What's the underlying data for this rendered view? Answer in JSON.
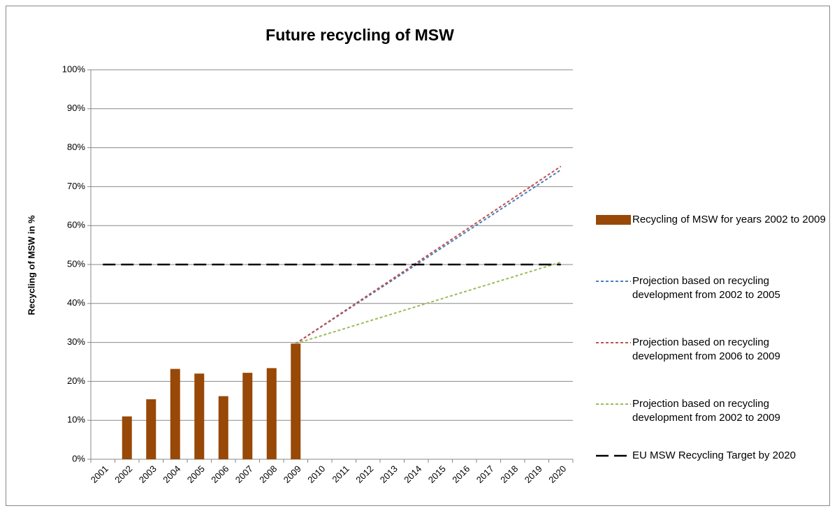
{
  "chart_data": {
    "type": "bar",
    "title": "Future recycling of MSW",
    "y_label": "Recycling of MSW in %",
    "categories": [
      "2001",
      "2002",
      "2003",
      "2004",
      "2005",
      "2006",
      "2007",
      "2008",
      "2009",
      "2010",
      "2011",
      "2012",
      "2013",
      "2014",
      "2015",
      "2016",
      "2017",
      "2018",
      "2019",
      "2020"
    ],
    "ylim": [
      0,
      100
    ],
    "yticks": [
      {
        "value": 0,
        "label": "0%"
      },
      {
        "value": 10,
        "label": "10%"
      },
      {
        "value": 20,
        "label": "20%"
      },
      {
        "value": 30,
        "label": "30%"
      },
      {
        "value": 40,
        "label": "40%"
      },
      {
        "value": 50,
        "label": "50%"
      },
      {
        "value": 60,
        "label": "60%"
      },
      {
        "value": 70,
        "label": "70%"
      },
      {
        "value": 80,
        "label": "80%"
      },
      {
        "value": 90,
        "label": "90%"
      },
      {
        "value": 100,
        "label": "100%"
      }
    ],
    "grid": true,
    "series": [
      {
        "name": "Recycling of MSW for years 2002 to 2009",
        "type": "bar",
        "color": "#984807",
        "values": [
          null,
          11,
          15.4,
          23.2,
          22,
          16.2,
          22.2,
          23.4,
          29.7,
          null,
          null,
          null,
          null,
          null,
          null,
          null,
          null,
          null,
          null,
          null
        ]
      },
      {
        "name": "Projection based on recycling development from 2002 to 2005",
        "type": "line",
        "color": "#4a7ebb",
        "x": [
          "2009",
          "2020"
        ],
        "values": [
          29.7,
          74.3
        ]
      },
      {
        "name": "Projection based on recycling development from 2006 to 2009",
        "type": "line",
        "color": "#c0504d",
        "x": [
          "2009",
          "2020"
        ],
        "values": [
          29.7,
          75.2
        ]
      },
      {
        "name": "Projection based on recycling development from 2002 to 2009",
        "type": "line",
        "color": "#9bbb59",
        "x": [
          "2009",
          "2020"
        ],
        "values": [
          29.7,
          50.6
        ]
      },
      {
        "name": "EU MSW Recycling Target by 2020",
        "type": "target",
        "color": "#000000",
        "x": [
          "2001",
          "2020"
        ],
        "values": [
          50,
          50
        ]
      }
    ]
  }
}
